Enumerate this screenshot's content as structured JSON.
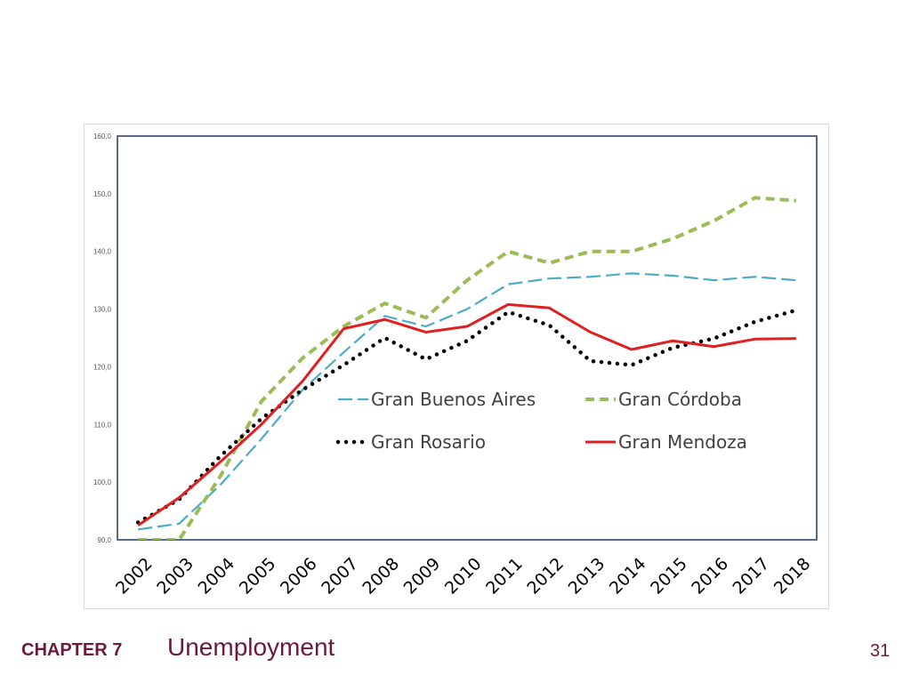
{
  "footer": {
    "chapter": "CHAPTER 7",
    "title": "Unemployment",
    "page": "31"
  },
  "chart_data": {
    "type": "line",
    "title": "",
    "xlabel": "",
    "ylabel": "",
    "x": [
      "2002",
      "2003",
      "2004",
      "2005",
      "2006",
      "2007",
      "2008",
      "2009",
      "2010",
      "2011",
      "2012",
      "2013",
      "2014",
      "2015",
      "2016",
      "2017",
      "2018"
    ],
    "y_ticks": [
      "90,0",
      "100,0",
      "110,0",
      "120,0",
      "130,0",
      "140,0",
      "150,0",
      "160,0"
    ],
    "ylim": [
      90,
      160
    ],
    "grid": false,
    "legend_position": "center",
    "series": [
      {
        "name": "Gran Buenos Aires",
        "style": "long-dash",
        "color": "#4bacc6",
        "values": [
          91.8,
          92.8,
          99.5,
          107.5,
          116.0,
          122.5,
          128.8,
          127.0,
          130.0,
          134.3,
          135.3,
          135.6,
          136.2,
          135.8,
          135.0,
          135.6,
          135.0
        ]
      },
      {
        "name": "Gran Córdoba",
        "style": "dash",
        "color": "#9bbb59",
        "values": [
          89.0,
          90.0,
          101.0,
          114.0,
          121.5,
          127.0,
          131.0,
          128.5,
          135.0,
          140.0,
          138.0,
          140.0,
          140.0,
          142.2,
          145.3,
          149.3,
          148.8
        ]
      },
      {
        "name": "Gran Rosario",
        "style": "dotted",
        "color": "#000000",
        "values": [
          93.0,
          97.0,
          104.5,
          111.0,
          116.0,
          120.3,
          125.0,
          121.3,
          124.5,
          129.5,
          127.2,
          121.0,
          120.3,
          123.3,
          124.9,
          127.8,
          129.8
        ]
      },
      {
        "name": "Gran Mendoza",
        "style": "solid",
        "color": "#e02020",
        "values": [
          92.5,
          97.3,
          103.5,
          110.0,
          117.5,
          126.6,
          128.2,
          126.0,
          127.0,
          130.8,
          130.2,
          126.0,
          123.0,
          124.5,
          123.5,
          124.8,
          124.9
        ]
      }
    ]
  }
}
